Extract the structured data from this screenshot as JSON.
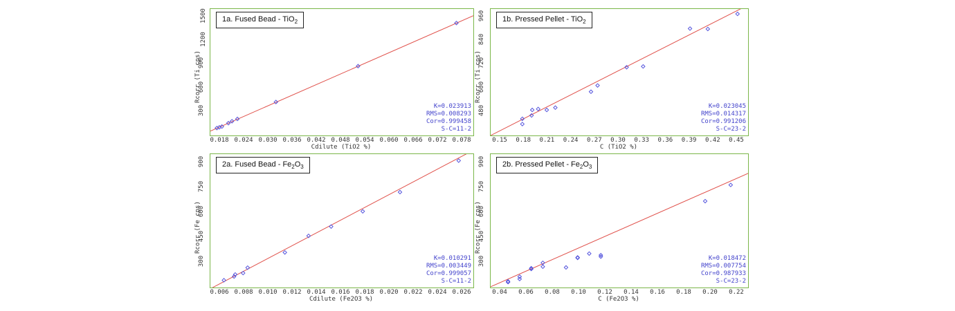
{
  "colors": {
    "frame": "#7ab648",
    "line": "#e0504a",
    "point": "#5555dd",
    "stats": "#4444cc"
  },
  "chart_data": [
    {
      "id": "1a",
      "type": "scatter",
      "title_main": "1a. Fused Bead - TiO",
      "title_sub": "2",
      "ylabel": "Rcorr (Ti cps)",
      "xlabel": "Cdilute (TiO2 %)",
      "xlim": [
        0.01,
        0.083
      ],
      "ylim": [
        50,
        1720
      ],
      "xticks": [
        "0.018",
        "0.024",
        "0.030",
        "0.036",
        "0.042",
        "0.048",
        "0.054",
        "0.060",
        "0.066",
        "0.072",
        "0.078"
      ],
      "yticks": [
        "300",
        "600",
        "900",
        "1200",
        "1500"
      ],
      "points": [
        {
          "x": 0.0118,
          "y": 148
        },
        {
          "x": 0.0125,
          "y": 158
        },
        {
          "x": 0.0132,
          "y": 168
        },
        {
          "x": 0.015,
          "y": 213
        },
        {
          "x": 0.016,
          "y": 238
        },
        {
          "x": 0.0175,
          "y": 268
        },
        {
          "x": 0.0282,
          "y": 492
        },
        {
          "x": 0.051,
          "y": 965
        },
        {
          "x": 0.0783,
          "y": 1535
        }
      ],
      "fit": {
        "x": [
          0.01,
          0.083
        ],
        "y": [
          108,
          1631
        ]
      },
      "stats": [
        "K=0.023913",
        "RMS=0.008293",
        "Cor=0.999458",
        "S-C=11-2"
      ]
    },
    {
      "id": "1b",
      "type": "scatter",
      "title_main": "1b. Pressed Pellet - TiO",
      "title_sub": "2",
      "ylabel": "Rcorr (Ti cps)",
      "xlabel": "C (TiO2 %)",
      "xlim": [
        0.1,
        0.49
      ],
      "ylim": [
        345,
        990
      ],
      "xticks": [
        "0.15",
        "0.18",
        "0.21",
        "0.24",
        "0.27",
        "0.30",
        "0.33",
        "0.36",
        "0.39",
        "0.42",
        "0.45"
      ],
      "yticks": [
        "480",
        "600",
        "720",
        "840",
        "960"
      ],
      "points": [
        {
          "x": 0.148,
          "y": 403
        },
        {
          "x": 0.148,
          "y": 430
        },
        {
          "x": 0.162,
          "y": 447
        },
        {
          "x": 0.163,
          "y": 475
        },
        {
          "x": 0.172,
          "y": 480
        },
        {
          "x": 0.185,
          "y": 475
        },
        {
          "x": 0.198,
          "y": 487
        },
        {
          "x": 0.252,
          "y": 568
        },
        {
          "x": 0.262,
          "y": 600
        },
        {
          "x": 0.306,
          "y": 693
        },
        {
          "x": 0.331,
          "y": 697
        },
        {
          "x": 0.402,
          "y": 890
        },
        {
          "x": 0.429,
          "y": 888
        },
        {
          "x": 0.474,
          "y": 965
        }
      ],
      "fit": {
        "x": [
          0.1,
          0.49
        ],
        "y": [
          345,
          1010
        ]
      },
      "stats": [
        "K=0.023045",
        "RMS=0.014317",
        "Cor=0.991206",
        "S-C=23-2"
      ]
    },
    {
      "id": "2a",
      "type": "scatter",
      "title_main": "2a. Fused Bead - Fe",
      "title_sub": "2",
      "title_main2": "O",
      "title_sub2": "3",
      "ylabel": "Rcorr (Fe cps)",
      "xlabel": "Cdilute (Fe2O3 %)",
      "xlim": [
        0.004,
        0.0273
      ],
      "ylim": [
        170,
        1030
      ],
      "xticks": [
        "0.006",
        "0.008",
        "0.010",
        "0.012",
        "0.014",
        "0.016",
        "0.018",
        "0.020",
        "0.022",
        "0.024",
        "0.026"
      ],
      "yticks": [
        "300",
        "450",
        "600",
        "750",
        "900"
      ],
      "points": [
        {
          "x": 0.0052,
          "y": 217
        },
        {
          "x": 0.0061,
          "y": 241
        },
        {
          "x": 0.0062,
          "y": 254
        },
        {
          "x": 0.0069,
          "y": 263
        },
        {
          "x": 0.0073,
          "y": 298
        },
        {
          "x": 0.0106,
          "y": 396
        },
        {
          "x": 0.0127,
          "y": 503
        },
        {
          "x": 0.0147,
          "y": 563
        },
        {
          "x": 0.0175,
          "y": 661
        },
        {
          "x": 0.0208,
          "y": 785
        },
        {
          "x": 0.026,
          "y": 988
        }
      ],
      "fit": {
        "x": [
          0.004,
          0.0273
        ],
        "y": [
          162,
          1055
        ]
      },
      "stats": [
        "K=0.010291",
        "RMS=0.003449",
        "Cor=0.999057",
        "S-C=11-2"
      ]
    },
    {
      "id": "2b",
      "type": "scatter",
      "title_main": "2b. Pressed Pellet - Fe",
      "title_sub": "2",
      "title_main2": "O",
      "title_sub2": "3",
      "ylabel": "Rcorr (Fe cps)",
      "xlabel": "C (Fe2O3 %)",
      "xlim": [
        0.015,
        0.237
      ],
      "ylim": [
        185,
        1050
      ],
      "xticks": [
        "0.04",
        "0.06",
        "0.08",
        "0.10",
        "0.12",
        "0.14",
        "0.16",
        "0.18",
        "0.20",
        "0.22"
      ],
      "yticks": [
        "300",
        "450",
        "600",
        "750",
        "900"
      ],
      "points": [
        {
          "x": 0.03,
          "y": 220
        },
        {
          "x": 0.03,
          "y": 225
        },
        {
          "x": 0.04,
          "y": 240
        },
        {
          "x": 0.04,
          "y": 255
        },
        {
          "x": 0.05,
          "y": 305
        },
        {
          "x": 0.05,
          "y": 310
        },
        {
          "x": 0.06,
          "y": 320
        },
        {
          "x": 0.06,
          "y": 345
        },
        {
          "x": 0.08,
          "y": 315
        },
        {
          "x": 0.09,
          "y": 377
        },
        {
          "x": 0.09,
          "y": 380
        },
        {
          "x": 0.1,
          "y": 405
        },
        {
          "x": 0.11,
          "y": 385
        },
        {
          "x": 0.11,
          "y": 395
        },
        {
          "x": 0.2,
          "y": 745
        },
        {
          "x": 0.222,
          "y": 850
        }
      ],
      "fit": {
        "x": [
          0.015,
          0.237
        ],
        "y": [
          190,
          925
        ]
      },
      "stats": [
        "K=0.018472",
        "RMS=0.007754",
        "Cor=0.987933",
        "S-C=23-2"
      ]
    }
  ]
}
